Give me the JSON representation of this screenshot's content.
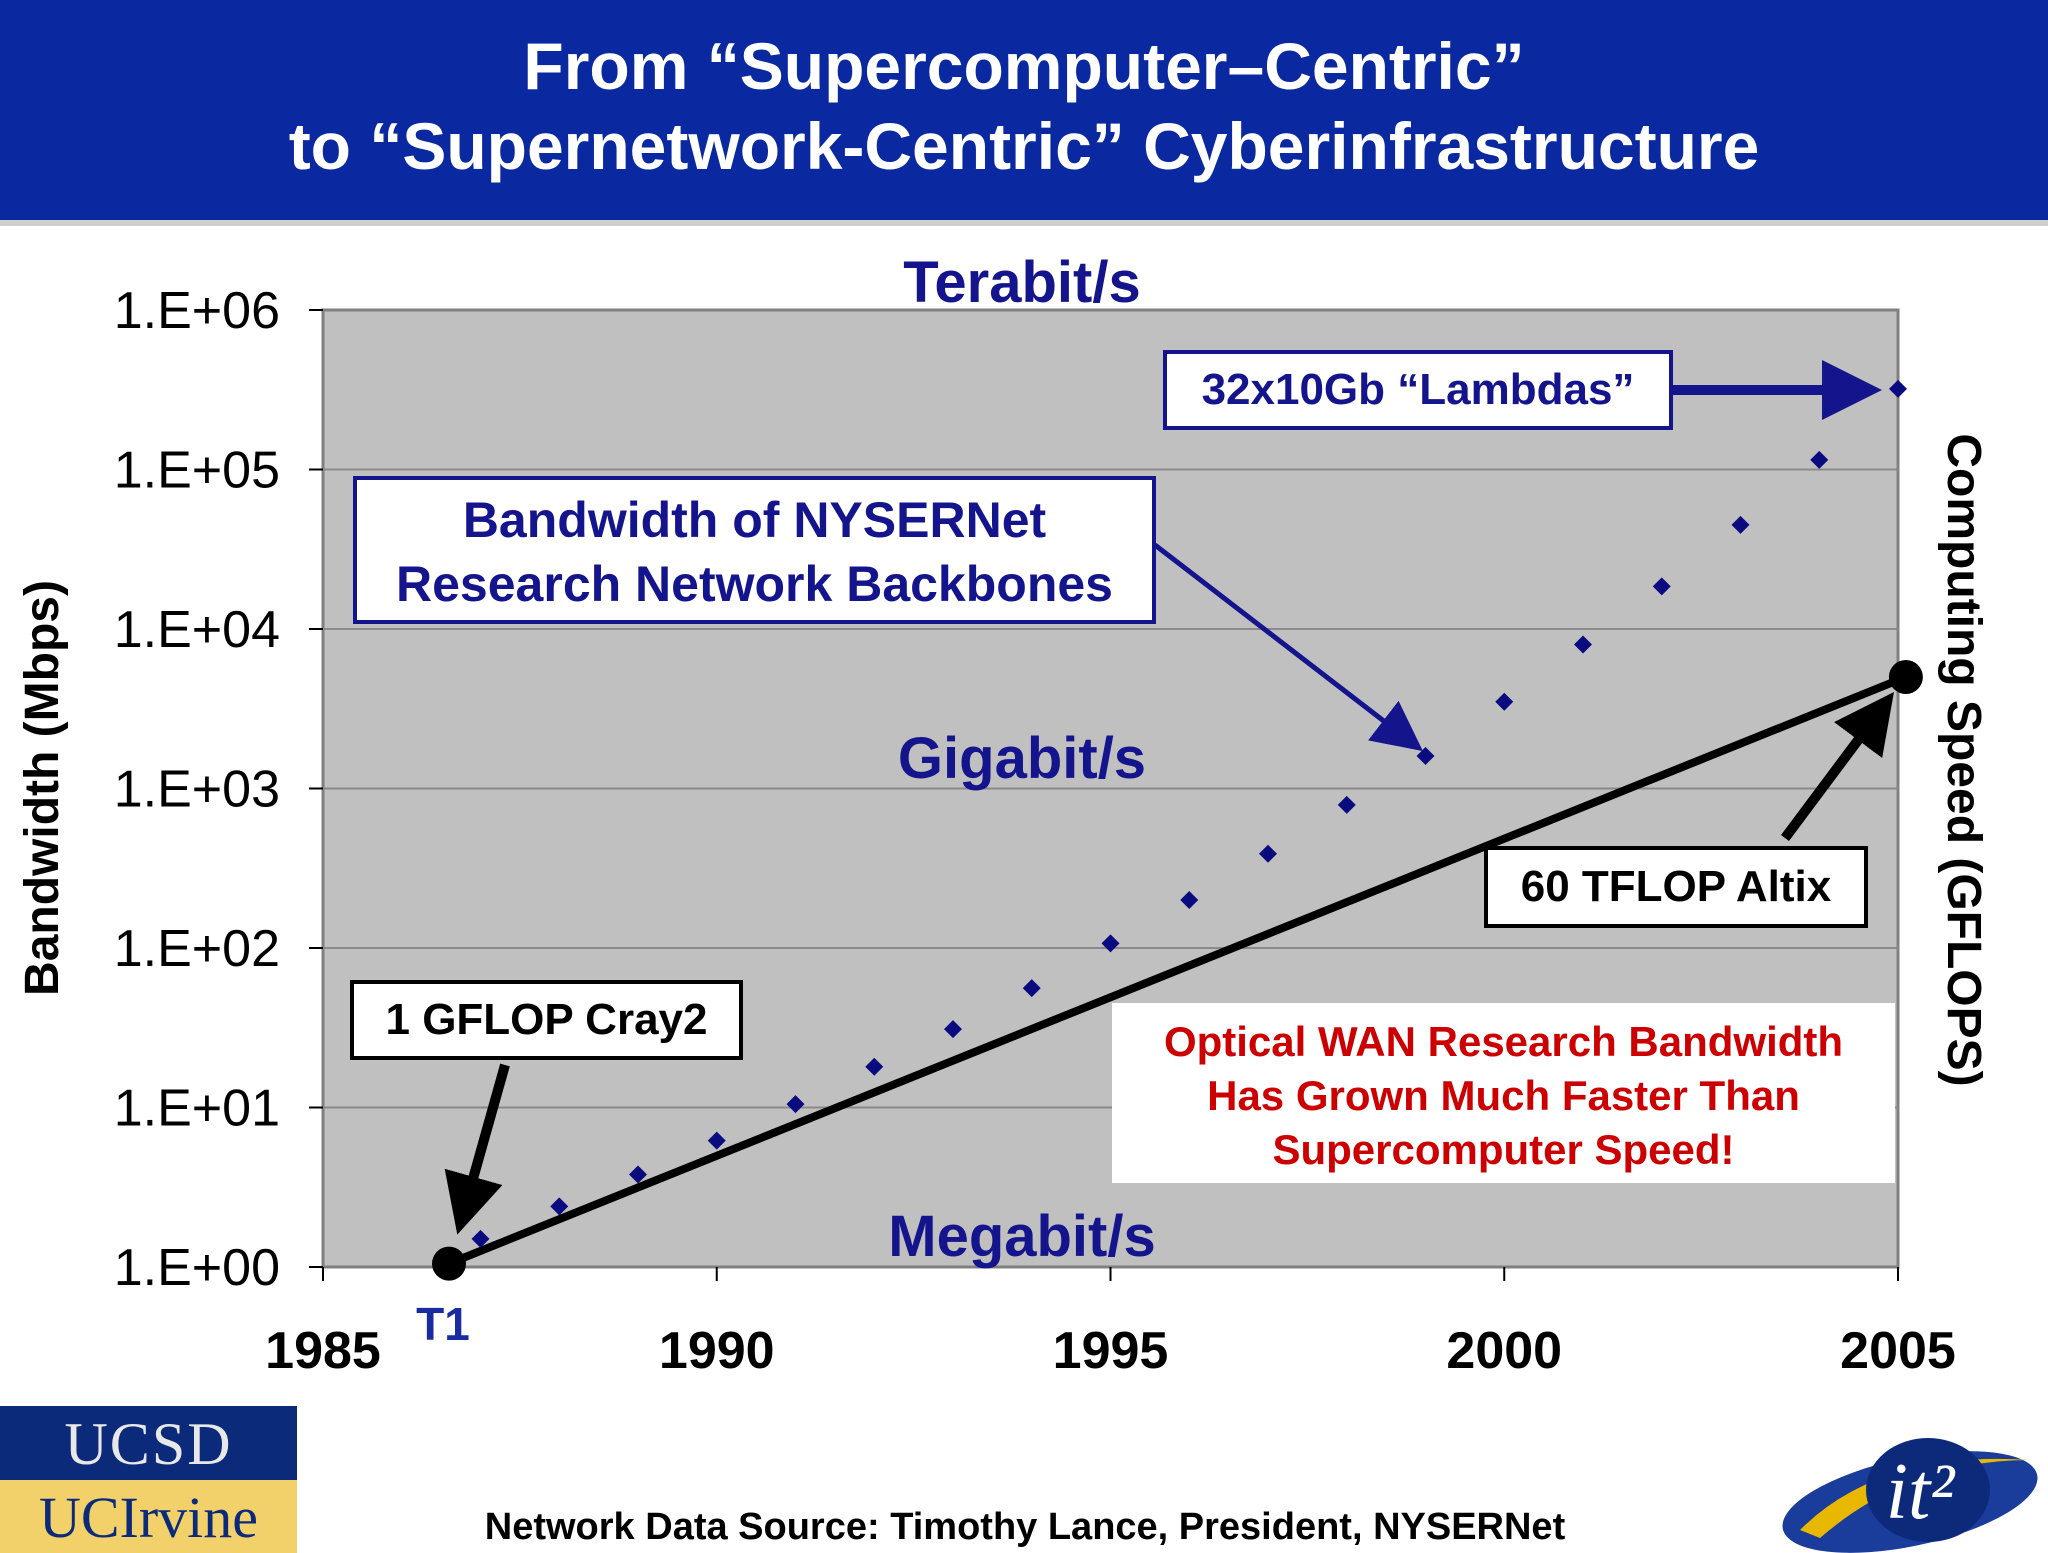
{
  "header": {
    "line1": "From “Supercomputer–Centric”",
    "line2": "to “Supernetwork-Centric” Cyberinfrastructure"
  },
  "chart_data": {
    "type": "scatter",
    "title": "",
    "ylabel": "Bandwidth (Mbps)",
    "y2label": "Computing Speed (GFLOPS)",
    "yscale": "log",
    "ylim": [
      1,
      1000000
    ],
    "xlim": [
      1985,
      2005
    ],
    "x_ticks": [
      "1985",
      "1990",
      "1995",
      "2000",
      "2005"
    ],
    "y_ticks": [
      "1.E+00",
      "1.E+01",
      "1.E+02",
      "1.E+03",
      "1.E+04",
      "1.E+05",
      "1.E+06"
    ],
    "grid": true,
    "band_labels": {
      "terabit": "Terabit/s",
      "gigabit": "Gigabit/s",
      "megabit": "Megabit/s"
    },
    "series": [
      {
        "marker": "diamond",
        "color": "#0b0b80",
        "x": [
          1987,
          1988,
          1989,
          1990,
          1991,
          1992,
          1993,
          1994,
          1995,
          1996,
          1997,
          1998,
          1999,
          2000,
          2001,
          2002,
          2003,
          2004,
          2005
        ],
        "y": [
          1.5,
          2.4,
          3.8,
          6.2,
          10.5,
          18,
          31,
          56,
          107,
          200,
          390,
          790,
          1600,
          3500,
          8000,
          18500,
          45000,
          115000,
          320000
        ]
      },
      {
        "type": "line",
        "color": "#000000",
        "x": [
          1986.6,
          2005.1
        ],
        "y": [
          1.05,
          5000
        ]
      }
    ],
    "annotations": [
      {
        "text": "32x10Gb “Lambdas”"
      },
      {
        "text_line1": "Bandwidth of NYSERNet",
        "text_line2": "Research Network Backbones"
      },
      {
        "text": "1 GFLOP Cray2"
      },
      {
        "text": "60 TFLOP Altix"
      },
      {
        "text": "T1"
      },
      {
        "text_line1": "Optical WAN Research Bandwidth",
        "text_line2": "Has Grown Much Faster Than",
        "text_line3": "Supercomputer Speed!"
      }
    ],
    "colors": {
      "plot_bg": "#c0c0c0",
      "annotation_blue": "#14148c",
      "note_red": "#cc0000"
    }
  },
  "footer": {
    "source": "Network Data Source: Timothy Lance, President, NYSERNet",
    "logo_ucsd": "UCSD",
    "logo_uci": "UCIrvine",
    "logo_it2": "it²"
  }
}
